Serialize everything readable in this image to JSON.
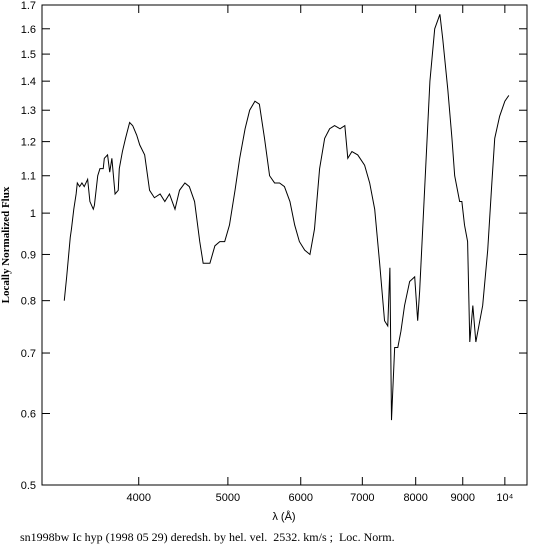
{
  "chart_data": {
    "type": "line",
    "x_label": "λ (Å)",
    "y_label": "Locally Normalized Flux",
    "footer": "sn1998bw Ic hyp (1998 05 29) deredsh. by hel. vel.  2532. km/s ;  Loc. Norm.",
    "log_x": true,
    "log_y": true,
    "xlim": [
      3140,
      10570
    ],
    "ylim": [
      0.5,
      1.7
    ],
    "xticks": [
      4000,
      5000,
      6000,
      7000,
      8000,
      9000,
      {
        "value": 10000,
        "label": "10⁴"
      }
    ],
    "yticks": [
      0.5,
      0.6,
      0.7,
      0.8,
      0.9,
      1,
      1.1,
      1.2,
      1.3,
      1.4,
      1.5,
      1.6,
      1.7
    ],
    "x": [
      3320,
      3340,
      3370,
      3380,
      3400,
      3420,
      3430,
      3450,
      3470,
      3490,
      3520,
      3540,
      3570,
      3580,
      3610,
      3630,
      3660,
      3670,
      3700,
      3720,
      3740,
      3770,
      3800,
      3810,
      3840,
      3870,
      3910,
      3940,
      3980,
      4010,
      4060,
      4110,
      4160,
      4220,
      4270,
      4320,
      4380,
      4430,
      4490,
      4540,
      4600,
      4660,
      4700,
      4720,
      4780,
      4840,
      4900,
      4960,
      5020,
      5090,
      5150,
      5220,
      5280,
      5350,
      5410,
      5480,
      5550,
      5620,
      5690,
      5760,
      5840,
      5910,
      5980,
      6060,
      6140,
      6210,
      6290,
      6370,
      6450,
      6530,
      6620,
      6700,
      6750,
      6820,
      6920,
      7040,
      7130,
      7220,
      7310,
      7400,
      7460,
      7500,
      7530,
      7590,
      7650,
      7710,
      7780,
      7880,
      7980,
      8040,
      8080,
      8180,
      8290,
      8390,
      8500,
      8560,
      8670,
      8760,
      8820,
      8930,
      8980,
      9040,
      9110,
      9160,
      9230,
      9300,
      9370,
      9460,
      9580,
      9680,
      9750,
      9870,
      10000,
      10100
    ],
    "series": [
      {
        "color": "#000000",
        "values": [
          0.8,
          0.85,
          0.94,
          0.96,
          1.01,
          1.05,
          1.08,
          1.07,
          1.08,
          1.07,
          1.09,
          1.03,
          1.01,
          1.02,
          1.1,
          1.12,
          1.12,
          1.15,
          1.16,
          1.11,
          1.15,
          1.05,
          1.06,
          1.12,
          1.17,
          1.21,
          1.26,
          1.25,
          1.22,
          1.19,
          1.16,
          1.06,
          1.04,
          1.05,
          1.03,
          1.05,
          1.01,
          1.06,
          1.08,
          1.07,
          1.03,
          0.93,
          0.88,
          0.88,
          0.88,
          0.92,
          0.93,
          0.93,
          0.97,
          1.06,
          1.15,
          1.24,
          1.3,
          1.33,
          1.32,
          1.21,
          1.1,
          1.08,
          1.08,
          1.07,
          1.03,
          0.97,
          0.93,
          0.91,
          0.9,
          0.96,
          1.12,
          1.21,
          1.24,
          1.25,
          1.24,
          1.25,
          1.15,
          1.17,
          1.16,
          1.13,
          1.08,
          1.01,
          0.88,
          0.76,
          0.75,
          0.87,
          0.59,
          0.71,
          0.71,
          0.74,
          0.79,
          0.84,
          0.85,
          0.76,
          0.82,
          1.06,
          1.4,
          1.6,
          1.66,
          1.56,
          1.37,
          1.21,
          1.1,
          1.03,
          1.03,
          0.97,
          0.93,
          0.72,
          0.79,
          0.72,
          0.75,
          0.79,
          0.91,
          1.08,
          1.21,
          1.28,
          1.33,
          1.35
        ]
      }
    ]
  }
}
